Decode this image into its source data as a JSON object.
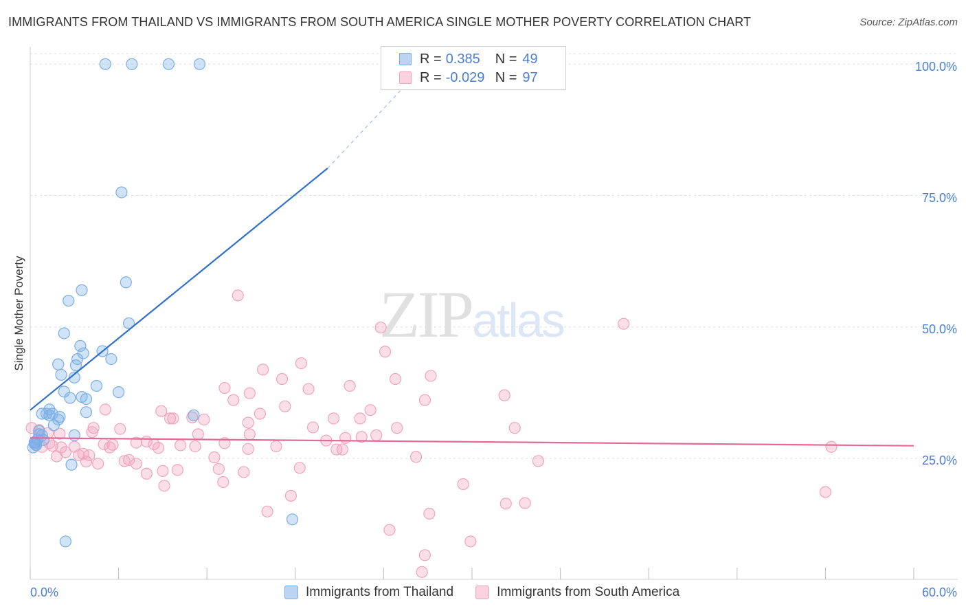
{
  "title": "IMMIGRANTS FROM THAILAND VS IMMIGRANTS FROM SOUTH AMERICA SINGLE MOTHER POVERTY CORRELATION CHART",
  "source": "Source: ZipAtlas.com",
  "watermark": {
    "part1": "ZIP",
    "part2": "atlas"
  },
  "legend": {
    "r_label": "R =",
    "n_label": "N =",
    "rows": [
      {
        "r": "0.385",
        "n": "49"
      },
      {
        "r": "-0.029",
        "n": "97"
      }
    ]
  },
  "colors": {
    "thailand": "#7aaee6",
    "south_america": "#f2a3bd",
    "thailand_line": "#2f6fce",
    "south_america_line": "#e36a97",
    "axis_text": "#4a7fd0"
  },
  "chart_data": {
    "type": "scatter",
    "title": "IMMIGRANTS FROM THAILAND VS IMMIGRANTS FROM SOUTH AMERICA SINGLE MOTHER POVERTY CORRELATION CHART",
    "xlabel": "",
    "ylabel": "Single Mother Poverty",
    "xlim": [
      0,
      60
    ],
    "ylim": [
      2,
      102
    ],
    "x_tick_labels": [
      "0.0%",
      "60.0%"
    ],
    "y_ticks": [
      25,
      50,
      75,
      100
    ],
    "y_tick_labels": [
      "25.0%",
      "50.0%",
      "75.0%",
      "100.0%"
    ],
    "grid": true,
    "legend_position": "bottom",
    "series": [
      {
        "name": "Immigrants from Thailand",
        "r": 0.385,
        "n": 49,
        "trend": {
          "x": [
            0,
            20.2
          ],
          "y": [
            34.2,
            80.2
          ],
          "dashed_to": {
            "x": 27.5,
            "y": 102
          }
        },
        "points": [
          [
            5.1,
            100
          ],
          [
            6.9,
            100
          ],
          [
            9.4,
            100
          ],
          [
            11.5,
            100
          ],
          [
            6.2,
            75.6
          ],
          [
            6.5,
            58.5
          ],
          [
            3.5,
            57
          ],
          [
            2.6,
            55
          ],
          [
            6.7,
            50.7
          ],
          [
            2.3,
            48.8
          ],
          [
            3.4,
            46.4
          ],
          [
            3.6,
            45
          ],
          [
            4.9,
            45.4
          ],
          [
            1.9,
            42.9
          ],
          [
            3.2,
            43.9
          ],
          [
            5.5,
            43.9
          ],
          [
            3.1,
            42.7
          ],
          [
            2.1,
            40.9
          ],
          [
            3,
            40.4
          ],
          [
            4.5,
            38.8
          ],
          [
            2.3,
            37.7
          ],
          [
            6,
            37.6
          ],
          [
            3.5,
            36.7
          ],
          [
            3.8,
            36.3
          ],
          [
            2.7,
            36.5
          ],
          [
            3.8,
            33.8
          ],
          [
            1.3,
            34.3
          ],
          [
            1.1,
            33.5
          ],
          [
            1.3,
            33.2
          ],
          [
            1.5,
            33.5
          ],
          [
            2,
            32.9
          ],
          [
            1.9,
            32.4
          ],
          [
            11.1,
            33.2
          ],
          [
            1.6,
            31.3
          ],
          [
            0.8,
            33.5
          ],
          [
            0.6,
            30.2
          ],
          [
            0.6,
            29.6
          ],
          [
            0.8,
            29.4
          ],
          [
            0.9,
            28.5
          ],
          [
            0.5,
            28.6
          ],
          [
            0.4,
            27.5
          ],
          [
            0.3,
            28.1
          ],
          [
            0.2,
            27.1
          ],
          [
            0.3,
            27.8
          ],
          [
            3,
            29.4
          ],
          [
            2.8,
            23.8
          ],
          [
            17.8,
            13.4
          ],
          [
            2.4,
            9.2
          ],
          [
            0.4,
            27.8
          ]
        ]
      },
      {
        "name": "Immigrants from South America",
        "r": -0.029,
        "n": 97,
        "trend": {
          "x": [
            0,
            60
          ],
          "y": [
            28.9,
            27.4
          ]
        },
        "points": [
          [
            14.1,
            56
          ],
          [
            23.8,
            49.9
          ],
          [
            40.3,
            50.6
          ],
          [
            24.1,
            45.3
          ],
          [
            18.4,
            43.1
          ],
          [
            15.8,
            41.9
          ],
          [
            17.1,
            40.1
          ],
          [
            24.8,
            40.1
          ],
          [
            27.2,
            40.7
          ],
          [
            13.2,
            38.4
          ],
          [
            18.9,
            38.2
          ],
          [
            21.7,
            38.8
          ],
          [
            14.9,
            37.4
          ],
          [
            13.8,
            36.1
          ],
          [
            26.8,
            36.1
          ],
          [
            32.2,
            37
          ],
          [
            17.3,
            34.9
          ],
          [
            5.1,
            34.3
          ],
          [
            8.9,
            34
          ],
          [
            23.1,
            34.2
          ],
          [
            9.5,
            32.6
          ],
          [
            9.7,
            32.6
          ],
          [
            11,
            32.8
          ],
          [
            11.8,
            32.4
          ],
          [
            15.6,
            33.5
          ],
          [
            22.4,
            32.6
          ],
          [
            20.6,
            32.6
          ],
          [
            14.8,
            31.8
          ],
          [
            6.1,
            30.6
          ],
          [
            4.3,
            30.8
          ],
          [
            19.2,
            30.9
          ],
          [
            24.9,
            30.8
          ],
          [
            32.9,
            30.8
          ],
          [
            0.1,
            30.8
          ],
          [
            0.6,
            30.4
          ],
          [
            1.2,
            29.8
          ],
          [
            2,
            29.7
          ],
          [
            4.2,
            30
          ],
          [
            14.9,
            29.6
          ],
          [
            11.4,
            29.6
          ],
          [
            13.2,
            27.9
          ],
          [
            20.1,
            28.4
          ],
          [
            21.4,
            28.9
          ],
          [
            22.5,
            29.1
          ],
          [
            23.5,
            29.4
          ],
          [
            7.9,
            28.2
          ],
          [
            8.4,
            27.7
          ],
          [
            7.2,
            28
          ],
          [
            5,
            27.7
          ],
          [
            5.6,
            27.6
          ],
          [
            3,
            27.2
          ],
          [
            5.4,
            27.1
          ],
          [
            8.7,
            27
          ],
          [
            10.2,
            27.5
          ],
          [
            11.2,
            27.3
          ],
          [
            14.8,
            26.8
          ],
          [
            16.7,
            27.3
          ],
          [
            20.8,
            26.7
          ],
          [
            21.2,
            26.7
          ],
          [
            0.3,
            28.1
          ],
          [
            0.8,
            27.2
          ],
          [
            1.5,
            27.4
          ],
          [
            1.3,
            27.9
          ],
          [
            2.1,
            27.1
          ],
          [
            2.4,
            26.2
          ],
          [
            3.3,
            25.6
          ],
          [
            3.6,
            25.9
          ],
          [
            4,
            25.6
          ],
          [
            1.8,
            25.4
          ],
          [
            3.8,
            24.4
          ],
          [
            4.6,
            24
          ],
          [
            6.4,
            24.5
          ],
          [
            6.7,
            24.7
          ],
          [
            7.2,
            24
          ],
          [
            12.5,
            25.2
          ],
          [
            26.2,
            25.3
          ],
          [
            34.5,
            24.5
          ],
          [
            18.3,
            23.2
          ],
          [
            9,
            22.6
          ],
          [
            10,
            22.8
          ],
          [
            12.8,
            23
          ],
          [
            14.5,
            22.4
          ],
          [
            7.9,
            22.1
          ],
          [
            13.1,
            20.5
          ],
          [
            9.1,
            19.8
          ],
          [
            29.4,
            20.1
          ],
          [
            17.7,
            17.9
          ],
          [
            54,
            18.6
          ],
          [
            32.3,
            16.4
          ],
          [
            33.6,
            16.5
          ],
          [
            16.1,
            14.9
          ],
          [
            27.1,
            14.5
          ],
          [
            24.4,
            11.4
          ],
          [
            29.9,
            9.2
          ],
          [
            26.8,
            6.6
          ],
          [
            26.6,
            3.4
          ],
          [
            54.4,
            27.2
          ]
        ]
      }
    ]
  },
  "bottom_legend": [
    "Immigrants from Thailand",
    "Immigrants from South America"
  ]
}
